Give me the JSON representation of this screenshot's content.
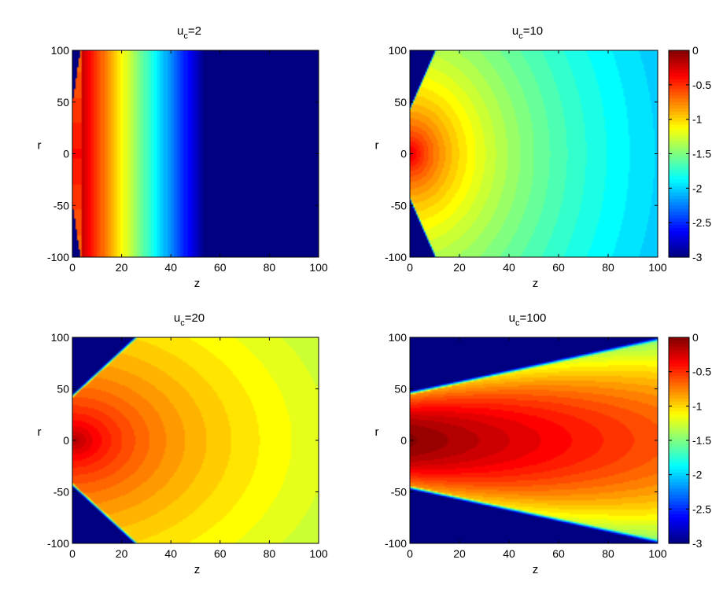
{
  "chart_data": [
    {
      "type": "heatmap",
      "title": "u_c=2",
      "title_base": "u",
      "title_sub": "c",
      "title_rest": "=2",
      "xlabel": "z",
      "ylabel": "r",
      "xlim": [
        0,
        100
      ],
      "ylim": [
        -100,
        100
      ],
      "xticks": [
        "0",
        "20",
        "40",
        "60",
        "80",
        "100"
      ],
      "yticks": [
        "100",
        "50",
        "0",
        "-50",
        "-100"
      ],
      "cmap": "jet",
      "clim": [
        -3,
        0
      ],
      "field": {
        "u_c": 2,
        "description_values": "log-intensity, max 0 at r=0,z=0"
      },
      "colorbar": null
    },
    {
      "type": "heatmap",
      "title": "u_c=10",
      "title_base": "u",
      "title_sub": "c",
      "title_rest": "=10",
      "xlabel": "z",
      "ylabel": "r",
      "xlim": [
        0,
        100
      ],
      "ylim": [
        -100,
        100
      ],
      "xticks": [
        "0",
        "20",
        "40",
        "60",
        "80",
        "100"
      ],
      "yticks": [
        "100",
        "50",
        "0",
        "-50",
        "-100"
      ],
      "cmap": "jet",
      "clim": [
        -3,
        0
      ],
      "field": {
        "u_c": 10
      },
      "colorbar": {
        "ticks": [
          "0",
          "-0.5",
          "-1",
          "-1.5",
          "-2",
          "-2.5",
          "-3"
        ]
      }
    },
    {
      "type": "heatmap",
      "title": "u_c=20",
      "title_base": "u",
      "title_sub": "c",
      "title_rest": "=20",
      "xlabel": "z",
      "ylabel": "r",
      "xlim": [
        0,
        100
      ],
      "ylim": [
        -100,
        100
      ],
      "xticks": [
        "0",
        "20",
        "40",
        "60",
        "80",
        "100"
      ],
      "yticks": [
        "100",
        "50",
        "0",
        "-50",
        "-100"
      ],
      "cmap": "jet",
      "clim": [
        -3,
        0
      ],
      "field": {
        "u_c": 20
      },
      "colorbar": null
    },
    {
      "type": "heatmap",
      "title": "u_c=100",
      "title_base": "u",
      "title_sub": "c",
      "title_rest": "=100",
      "xlabel": "z",
      "ylabel": "r",
      "xlim": [
        0,
        100
      ],
      "ylim": [
        -100,
        100
      ],
      "xticks": [
        "0",
        "20",
        "40",
        "60",
        "80",
        "100"
      ],
      "yticks": [
        "100",
        "50",
        "0",
        "-50",
        "-100"
      ],
      "cmap": "jet",
      "clim": [
        -3,
        0
      ],
      "field": {
        "u_c": 100
      },
      "colorbar": {
        "ticks": [
          "0",
          "-0.5",
          "-1",
          "-1.5",
          "-2",
          "-2.5",
          "-3"
        ]
      }
    }
  ]
}
